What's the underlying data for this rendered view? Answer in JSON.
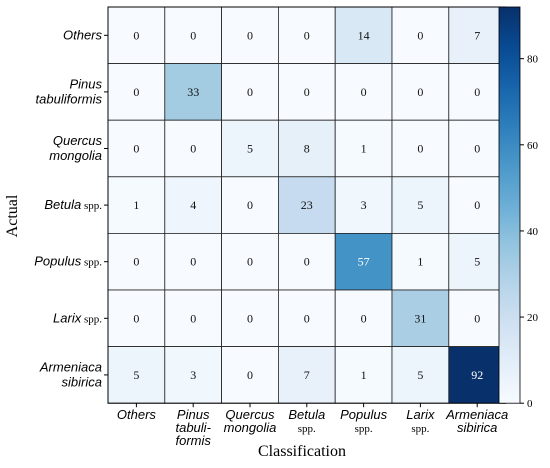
{
  "chart_data": {
    "type": "heatmap",
    "xlabel": "Classification",
    "ylabel": "Actual",
    "row_labels": [
      [
        {
          "text": "Others",
          "italic": true
        }
      ],
      [
        {
          "text": "Pinus",
          "italic": true
        },
        {
          "text": "tabuliformis",
          "italic": true
        }
      ],
      [
        {
          "text": "Quercus",
          "italic": true
        },
        {
          "text": "mongolia",
          "italic": true
        }
      ],
      [
        {
          "text": "Betula",
          "italic": true,
          "suffix": " spp."
        }
      ],
      [
        {
          "text": "Populus",
          "italic": true,
          "suffix": " spp."
        }
      ],
      [
        {
          "text": "Larix",
          "italic": true,
          "suffix": " spp."
        }
      ],
      [
        {
          "text": "Armeniaca",
          "italic": true
        },
        {
          "text": "sibirica",
          "italic": true
        }
      ]
    ],
    "col_labels": [
      [
        {
          "text": "Others",
          "italic": true
        }
      ],
      [
        {
          "text": "Pinus",
          "italic": true
        },
        {
          "text": "tabuli-",
          "italic": true
        },
        {
          "text": "formis",
          "italic": true
        }
      ],
      [
        {
          "text": "Quercus",
          "italic": true
        },
        {
          "text": "mongolia",
          "italic": true
        }
      ],
      [
        {
          "text": "Betula",
          "italic": true
        },
        {
          "text": "spp.",
          "italic": false
        }
      ],
      [
        {
          "text": "Populus",
          "italic": true
        },
        {
          "text": "spp.",
          "italic": false
        }
      ],
      [
        {
          "text": "Larix",
          "italic": true
        },
        {
          "text": "spp.",
          "italic": false
        }
      ],
      [
        {
          "text": "Armeniaca",
          "italic": true
        },
        {
          "text": "sibirica",
          "italic": true
        }
      ]
    ],
    "values": [
      [
        0,
        0,
        0,
        0,
        14,
        0,
        7
      ],
      [
        0,
        33,
        0,
        0,
        0,
        0,
        0
      ],
      [
        0,
        0,
        5,
        8,
        1,
        0,
        0
      ],
      [
        1,
        4,
        0,
        23,
        3,
        5,
        0
      ],
      [
        0,
        0,
        0,
        0,
        57,
        1,
        5
      ],
      [
        0,
        0,
        0,
        0,
        0,
        31,
        0
      ],
      [
        5,
        3,
        0,
        7,
        1,
        5,
        92
      ]
    ],
    "colorbar": {
      "min": 0,
      "max": 92,
      "ticks": [
        0,
        20,
        40,
        60,
        80
      ],
      "colormap": "Blues",
      "low_color": "#f7fbff",
      "high_color": "#08306b"
    }
  }
}
